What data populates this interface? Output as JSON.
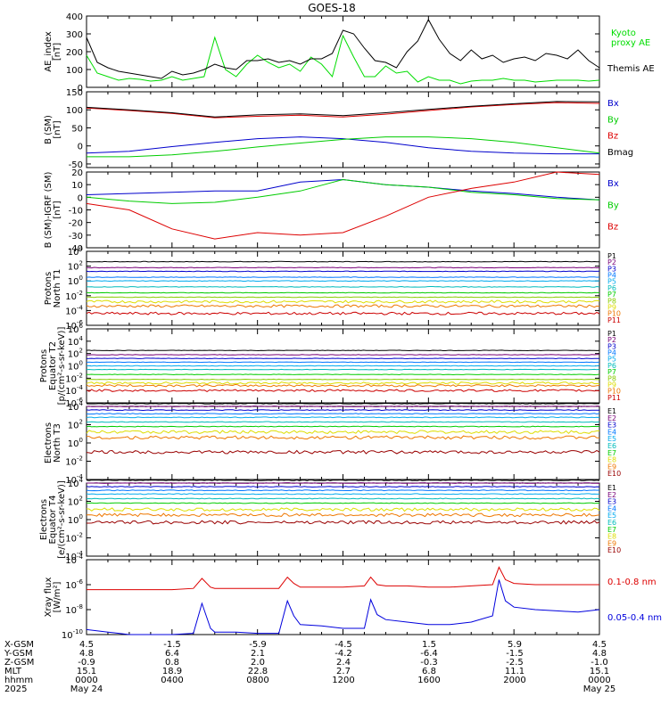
{
  "title": "GOES-18",
  "chart_data": [
    {
      "type": "line",
      "ylabel": [
        "AE_index",
        "[nT]"
      ],
      "ylim": [
        0,
        400
      ],
      "y_ticks": [
        "0",
        "100",
        "200",
        "300",
        "400"
      ],
      "series": [
        {
          "name": "Kyoto proxy AE",
          "color": "#00dd00",
          "label_lines": [
            "Kyoto",
            "proxy AE"
          ],
          "x": [
            0,
            0.5,
            1,
            1.5,
            2,
            2.5,
            3,
            3.5,
            4,
            4.5,
            5,
            5.5,
            6,
            6.5,
            7,
            7.5,
            8,
            8.5,
            9,
            9.5,
            10,
            10.5,
            11,
            11.5,
            12,
            12.5,
            13,
            13.5,
            14,
            14.5,
            15,
            15.5,
            16,
            16.5,
            17,
            17.5,
            18,
            18.5,
            19,
            19.5,
            20,
            20.5,
            21,
            21.5,
            22,
            22.5,
            23,
            23.5,
            24
          ],
          "values": [
            180,
            80,
            60,
            40,
            50,
            45,
            35,
            40,
            60,
            40,
            50,
            60,
            280,
            100,
            60,
            130,
            180,
            140,
            110,
            130,
            90,
            170,
            130,
            60,
            290,
            170,
            60,
            60,
            120,
            80,
            90,
            30,
            60,
            40,
            40,
            20,
            35,
            40,
            40,
            50,
            40,
            40,
            30,
            35,
            40,
            40,
            40,
            35,
            40
          ]
        },
        {
          "name": "Themis AE",
          "color": "#000000",
          "label_lines": [
            "Themis AE"
          ],
          "x": [
            0,
            0.5,
            1,
            1.5,
            2,
            2.5,
            3,
            3.5,
            4,
            4.5,
            5,
            5.5,
            6,
            6.5,
            7,
            7.5,
            8,
            8.5,
            9,
            9.5,
            10,
            10.5,
            11,
            11.5,
            12,
            12.5,
            13,
            13.5,
            14,
            14.5,
            15,
            15.5,
            16,
            16.5,
            17,
            17.5,
            18,
            18.5,
            19,
            19.5,
            20,
            20.5,
            21,
            21.5,
            22,
            22.5,
            23,
            23.5,
            24
          ],
          "values": [
            280,
            140,
            110,
            90,
            80,
            70,
            60,
            50,
            90,
            70,
            80,
            100,
            130,
            110,
            100,
            150,
            150,
            160,
            140,
            150,
            130,
            160,
            160,
            190,
            320,
            300,
            220,
            150,
            140,
            110,
            200,
            260,
            380,
            270,
            190,
            150,
            210,
            160,
            180,
            140,
            160,
            170,
            150,
            190,
            180,
            160,
            210,
            150,
            110
          ]
        }
      ]
    },
    {
      "type": "line",
      "ylabel": [
        "B (SM)",
        "[nT]"
      ],
      "ylim": [
        -60,
        150
      ],
      "y_ticks": [
        "-50",
        "0",
        "50",
        "100",
        "150"
      ],
      "series": [
        {
          "name": "Bx",
          "color": "#0000cc",
          "x": [
            0,
            2,
            4,
            6,
            8,
            10,
            12,
            14,
            16,
            18,
            20,
            22,
            24
          ],
          "values": [
            -20,
            -15,
            -2,
            10,
            20,
            25,
            20,
            10,
            -5,
            -15,
            -20,
            -22,
            -22
          ]
        },
        {
          "name": "By",
          "color": "#00cc00",
          "x": [
            0,
            2,
            4,
            6,
            8,
            10,
            12,
            14,
            16,
            18,
            20,
            22,
            24
          ],
          "values": [
            -30,
            -30,
            -25,
            -15,
            -3,
            8,
            18,
            25,
            25,
            20,
            10,
            -5,
            -20
          ]
        },
        {
          "name": "Bz",
          "color": "#dd0000",
          "x": [
            0,
            2,
            4,
            6,
            8,
            10,
            12,
            14,
            16,
            18,
            20,
            22,
            24
          ],
          "values": [
            105,
            98,
            90,
            78,
            82,
            85,
            80,
            88,
            98,
            108,
            115,
            120,
            118
          ]
        },
        {
          "name": "Bmag",
          "color": "#000000",
          "x": [
            0,
            2,
            4,
            6,
            8,
            10,
            12,
            14,
            16,
            18,
            20,
            22,
            24
          ],
          "values": [
            107,
            100,
            92,
            80,
            86,
            89,
            84,
            92,
            101,
            110,
            117,
            123,
            122
          ]
        }
      ]
    },
    {
      "type": "line",
      "ylabel": [
        "B (SM)-IGRF (SM)",
        "[nT]"
      ],
      "ylim": [
        -40,
        20
      ],
      "y_ticks": [
        "-40",
        "-30",
        "-20",
        "-10",
        "0",
        "10",
        "20"
      ],
      "series": [
        {
          "name": "Bx",
          "color": "#0000cc",
          "x": [
            0,
            2,
            4,
            6,
            8,
            10,
            12,
            14,
            16,
            18,
            20,
            22,
            24
          ],
          "values": [
            2,
            3,
            4,
            5,
            5,
            12,
            14,
            10,
            8,
            5,
            3,
            0,
            -2
          ]
        },
        {
          "name": "By",
          "color": "#00cc00",
          "x": [
            0,
            2,
            4,
            6,
            8,
            10,
            12,
            14,
            16,
            18,
            20,
            22,
            24
          ],
          "values": [
            0,
            -3,
            -5,
            -4,
            0,
            5,
            14,
            10,
            8,
            4,
            2,
            -1,
            -2
          ]
        },
        {
          "name": "Bz",
          "color": "#dd0000",
          "x": [
            0,
            2,
            4,
            6,
            8,
            10,
            12,
            14,
            16,
            18,
            20,
            22,
            24
          ],
          "values": [
            -5,
            -10,
            -25,
            -33,
            -28,
            -30,
            -28,
            -15,
            0,
            7,
            12,
            20,
            18
          ]
        }
      ]
    },
    {
      "type": "line",
      "ylog": true,
      "ylabel": [
        "Protons",
        "North T1"
      ],
      "y_ticks": [
        "10^-6",
        "10^-4",
        "10^-2",
        "10^0",
        "10^2",
        "10^4"
      ],
      "series": [
        {
          "name": "P1",
          "color": "#000000",
          "level": 2.6
        },
        {
          "name": "P2",
          "color": "#770077",
          "level": 1.8
        },
        {
          "name": "P3",
          "color": "#0000cc",
          "level": 1.3
        },
        {
          "name": "P4",
          "color": "#0077ff",
          "level": 0.5
        },
        {
          "name": "P5",
          "color": "#00aaee",
          "level": 0.0
        },
        {
          "name": "P6",
          "color": "#00bbbb",
          "level": -0.8
        },
        {
          "name": "P7",
          "color": "#00cc00",
          "level": -1.6
        },
        {
          "name": "P8",
          "color": "#88cc00",
          "level": -2.2
        },
        {
          "name": "P9",
          "color": "#dddd00",
          "level": -2.8
        },
        {
          "name": "P10",
          "color": "#ee7700",
          "level": -3.4
        },
        {
          "name": "P11",
          "color": "#cc0000",
          "level": -4.4
        }
      ]
    },
    {
      "type": "line",
      "ylog": true,
      "ylabel": [
        "Protons",
        "Equator T2",
        "[p/(cm²-s-sr-keV)]"
      ],
      "y_ticks": [
        "10^-6",
        "10^-4",
        "10^-2",
        "10^0",
        "10^2",
        "10^4",
        "10^6"
      ],
      "series": [
        {
          "name": "P1",
          "color": "#000000",
          "level": 2.5
        },
        {
          "name": "P2",
          "color": "#770077",
          "level": 1.8
        },
        {
          "name": "P3",
          "color": "#0000cc",
          "level": 1.2
        },
        {
          "name": "P4",
          "color": "#0077ff",
          "level": 0.6
        },
        {
          "name": "P5",
          "color": "#00aaee",
          "level": 0.0
        },
        {
          "name": "P6",
          "color": "#00bbbb",
          "level": -0.6
        },
        {
          "name": "P7",
          "color": "#00cc00",
          "level": -1.4
        },
        {
          "name": "P8",
          "color": "#88cc00",
          "level": -2.2
        },
        {
          "name": "P9",
          "color": "#dddd00",
          "level": -2.8
        },
        {
          "name": "P10",
          "color": "#ee7700",
          "level": -3.2
        },
        {
          "name": "P11",
          "color": "#cc0000",
          "level": -4.0
        }
      ]
    },
    {
      "type": "line",
      "ylog": true,
      "ylabel": [
        "Electrons",
        "North T3"
      ],
      "y_ticks": [
        "10^-4",
        "10^-2",
        "10^0",
        "10^2",
        "10^4"
      ],
      "series": [
        {
          "name": "E1",
          "color": "#000000",
          "level": 4.3
        },
        {
          "name": "E2",
          "color": "#770077",
          "level": 4.0
        },
        {
          "name": "E3",
          "color": "#0000cc",
          "level": 3.6
        },
        {
          "name": "E4",
          "color": "#0077ff",
          "level": 3.2
        },
        {
          "name": "E5",
          "color": "#00aaee",
          "level": 2.8
        },
        {
          "name": "E6",
          "color": "#00bbbb",
          "level": 2.3
        },
        {
          "name": "E7",
          "color": "#00cc00",
          "level": 1.8
        },
        {
          "name": "E8",
          "color": "#dddd00",
          "level": 1.2
        },
        {
          "name": "E9",
          "color": "#ee7700",
          "level": 0.6
        },
        {
          "name": "E10",
          "color": "#990000",
          "level": -1.0
        }
      ]
    },
    {
      "type": "line",
      "ylog": true,
      "ylabel": [
        "Electrons",
        "Equator T4",
        "[e/(cm²-s-sr-keV)]"
      ],
      "y_ticks": [
        "10^-4",
        "10^-2",
        "10^0",
        "10^2",
        "10^4"
      ],
      "series": [
        {
          "name": "E1",
          "color": "#000000",
          "level": 4.3
        },
        {
          "name": "E2",
          "color": "#770077",
          "level": 4.0
        },
        {
          "name": "E3",
          "color": "#0000cc",
          "level": 3.6
        },
        {
          "name": "E4",
          "color": "#0077ff",
          "level": 3.2
        },
        {
          "name": "E5",
          "color": "#00aaee",
          "level": 2.8
        },
        {
          "name": "E6",
          "color": "#00bbbb",
          "level": 2.3
        },
        {
          "name": "E7",
          "color": "#00cc00",
          "level": 1.8
        },
        {
          "name": "E8",
          "color": "#dddd00",
          "level": 1.1
        },
        {
          "name": "E9",
          "color": "#ee7700",
          "level": 0.5
        },
        {
          "name": "E10",
          "color": "#990000",
          "level": -0.3
        }
      ]
    },
    {
      "type": "line",
      "ylog": true,
      "ylabel": [
        "Xray flux",
        "[W/m²]"
      ],
      "y_ticks": [
        "10^-10",
        "10^-8",
        "10^-6",
        "10^-4"
      ],
      "series": [
        {
          "name": "0.1-0.8 nm",
          "color": "#dd0000",
          "label_lines": [
            "0.1-0.8 nm"
          ],
          "x": [
            0,
            1,
            2,
            3,
            4,
            5,
            5.4,
            5.8,
            6,
            7,
            8,
            9,
            9.4,
            9.7,
            10,
            11,
            12,
            13,
            13.3,
            13.6,
            14,
            15,
            16,
            17,
            18,
            19,
            19.3,
            19.6,
            20,
            21,
            22,
            23,
            24
          ],
          "values": [
            -6.4,
            -6.4,
            -6.4,
            -6.4,
            -6.4,
            -6.3,
            -5.5,
            -6.2,
            -6.3,
            -6.3,
            -6.3,
            -6.3,
            -5.4,
            -5.9,
            -6.2,
            -6.2,
            -6.2,
            -6.1,
            -5.4,
            -6.0,
            -6.1,
            -6.1,
            -6.2,
            -6.2,
            -6.1,
            -6.0,
            -4.6,
            -5.6,
            -5.9,
            -6.0,
            -6.0,
            -6.0,
            -6.0
          ]
        },
        {
          "name": "0.05-0.4 nm",
          "color": "#0000dd",
          "label_lines": [
            "0.05-0.4 nm"
          ],
          "x": [
            0,
            1,
            2,
            3,
            4,
            5,
            5.4,
            5.8,
            6,
            7,
            8,
            9,
            9.4,
            9.7,
            10,
            11,
            12,
            13,
            13.3,
            13.6,
            14,
            15,
            16,
            17,
            18,
            19,
            19.3,
            19.6,
            20,
            21,
            22,
            23,
            24
          ],
          "values": [
            -9.6,
            -9.8,
            -10.0,
            -10.0,
            -10.0,
            -9.9,
            -7.5,
            -9.5,
            -9.8,
            -9.8,
            -9.9,
            -9.9,
            -7.3,
            -8.5,
            -9.2,
            -9.3,
            -9.5,
            -9.5,
            -7.2,
            -8.4,
            -8.8,
            -9.0,
            -9.2,
            -9.2,
            -9.0,
            -8.5,
            -5.6,
            -7.3,
            -7.8,
            -8.0,
            -8.1,
            -8.2,
            -8.0
          ]
        }
      ]
    }
  ],
  "footer": {
    "rows": [
      {
        "label": "X-GSM",
        "values": [
          "4.5",
          "-1.5",
          "-5.9",
          "-4.5",
          "1.5",
          "5.9",
          "4.5"
        ]
      },
      {
        "label": "Y-GSM",
        "values": [
          "4.8",
          "6.4",
          "2.1",
          "-4.2",
          "-6.4",
          "-1.5",
          "4.8"
        ]
      },
      {
        "label": "Z-GSM",
        "values": [
          "-0.9",
          "0.8",
          "2.0",
          "2.4",
          "-0.3",
          "-2.5",
          "-1.0"
        ]
      },
      {
        "label": "MLT",
        "values": [
          "15.1",
          "18.9",
          "22.8",
          "2.7",
          "6.8",
          "11.1",
          "15.1"
        ]
      },
      {
        "label": "hhmm",
        "values": [
          "0000",
          "0400",
          "0800",
          "1200",
          "1600",
          "2000",
          "0000"
        ]
      },
      {
        "label": "2025",
        "values": [
          "May 24",
          "",
          "",
          "",
          "",
          "",
          "May 25"
        ]
      }
    ]
  }
}
